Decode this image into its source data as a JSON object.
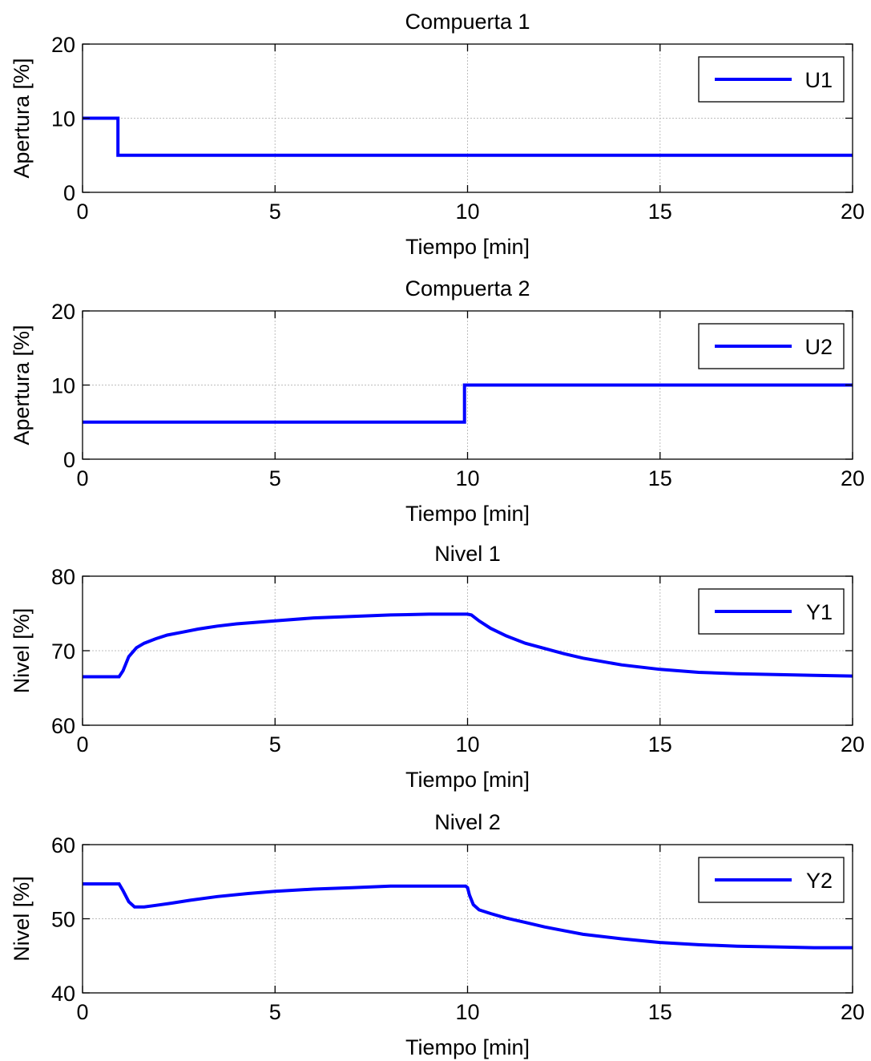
{
  "chart_data": [
    {
      "type": "line",
      "title": "Compuerta 1",
      "xlabel": "Tiempo [min]",
      "ylabel": "Apertura [%]",
      "xlim": [
        0,
        20
      ],
      "ylim": [
        0,
        20
      ],
      "xticks": [
        0,
        5,
        10,
        15,
        20
      ],
      "yticks": [
        0,
        10,
        20
      ],
      "grid": true,
      "legend_position": "top-right",
      "series": [
        {
          "name": "U1",
          "color": "#0000ff",
          "x": [
            0,
            0.92,
            0.92,
            20
          ],
          "y": [
            10,
            10,
            5,
            5
          ]
        }
      ]
    },
    {
      "type": "line",
      "title": "Compuerta 2",
      "xlabel": "Tiempo [min]",
      "ylabel": "Apertura [%]",
      "xlim": [
        0,
        20
      ],
      "ylim": [
        0,
        20
      ],
      "xticks": [
        0,
        5,
        10,
        15,
        20
      ],
      "yticks": [
        0,
        10,
        20
      ],
      "grid": true,
      "legend_position": "top-right",
      "series": [
        {
          "name": "U2",
          "color": "#0000ff",
          "x": [
            0,
            9.92,
            9.92,
            20
          ],
          "y": [
            5,
            5,
            10,
            10
          ]
        }
      ]
    },
    {
      "type": "line",
      "title": "Nivel 1",
      "xlabel": "Tiempo [min]",
      "ylabel": "Nivel [%]",
      "xlim": [
        0,
        20
      ],
      "ylim": [
        60,
        80
      ],
      "xticks": [
        0,
        5,
        10,
        15,
        20
      ],
      "yticks": [
        60,
        70,
        80
      ],
      "grid": true,
      "legend_position": "top-right",
      "series": [
        {
          "name": "Y1",
          "color": "#0000ff",
          "x": [
            0,
            0.95,
            1.05,
            1.2,
            1.4,
            1.6,
            1.9,
            2.2,
            2.6,
            3.0,
            3.5,
            4.0,
            5.0,
            6.0,
            7.0,
            8.0,
            9.0,
            10.0,
            10.1,
            10.3,
            10.6,
            11.0,
            11.5,
            12.0,
            12.5,
            13.0,
            14.0,
            15.0,
            16.0,
            17.0,
            18.0,
            19.0,
            20.0
          ],
          "y": [
            66.5,
            66.5,
            67.3,
            69.2,
            70.4,
            71.0,
            71.6,
            72.1,
            72.5,
            72.9,
            73.3,
            73.6,
            74.0,
            74.4,
            74.6,
            74.8,
            74.9,
            74.9,
            74.8,
            74.0,
            73.0,
            72.0,
            71.0,
            70.3,
            69.6,
            69.0,
            68.1,
            67.5,
            67.1,
            66.9,
            66.8,
            66.7,
            66.6
          ]
        }
      ]
    },
    {
      "type": "line",
      "title": "Nivel 2",
      "xlabel": "Tiempo [min]",
      "ylabel": "Nivel [%]",
      "xlim": [
        0,
        20
      ],
      "ylim": [
        40,
        60
      ],
      "xticks": [
        0,
        5,
        10,
        15,
        20
      ],
      "yticks": [
        40,
        50,
        60
      ],
      "grid": true,
      "legend_position": "top-right",
      "series": [
        {
          "name": "Y2",
          "color": "#0000ff",
          "x": [
            0,
            0.95,
            1.05,
            1.2,
            1.35,
            1.6,
            1.9,
            2.3,
            2.8,
            3.5,
            4.3,
            5.0,
            6.0,
            7.0,
            8.0,
            9.0,
            9.95,
            10.0,
            10.05,
            10.15,
            10.3,
            10.6,
            11.0,
            11.5,
            12.0,
            12.5,
            13.0,
            14.0,
            15.0,
            16.0,
            17.0,
            18.0,
            19.0,
            20.0
          ],
          "y": [
            54.7,
            54.7,
            53.8,
            52.3,
            51.6,
            51.6,
            51.8,
            52.1,
            52.5,
            53.0,
            53.4,
            53.7,
            54.0,
            54.2,
            54.4,
            54.4,
            54.4,
            54.2,
            53.2,
            51.9,
            51.2,
            50.7,
            50.1,
            49.5,
            48.9,
            48.4,
            47.9,
            47.3,
            46.8,
            46.5,
            46.3,
            46.2,
            46.1,
            46.1
          ]
        }
      ]
    }
  ]
}
